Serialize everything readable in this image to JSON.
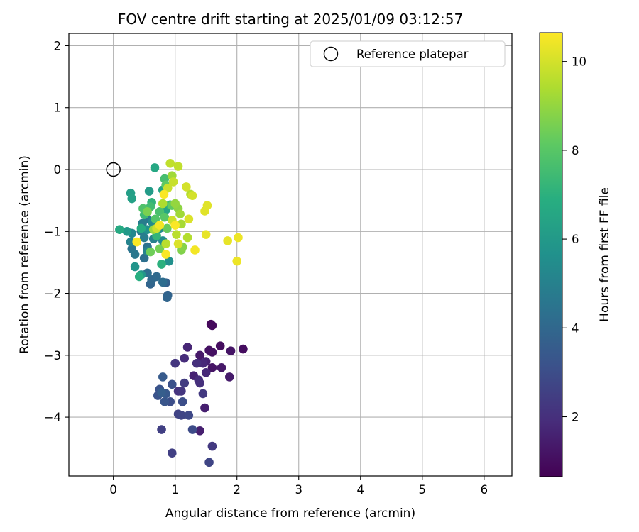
{
  "chart_data": {
    "type": "scatter",
    "title": "FOV centre drift starting at 2025/01/09 03:12:57",
    "xlabel": "Angular distance from reference (arcmin)",
    "ylabel": "Rotation from reference (arcmin)",
    "xlim": [
      -0.72,
      6.45
    ],
    "ylim": [
      -4.95,
      2.2
    ],
    "x_ticks": [
      0,
      1,
      2,
      3,
      4,
      5,
      6
    ],
    "y_ticks": [
      -4,
      -3,
      -2,
      -1,
      0,
      1,
      2
    ],
    "grid": true,
    "legend": {
      "placement": "top-right",
      "entries": [
        "Reference platepar"
      ]
    },
    "reference_point": {
      "x": 0,
      "y": 0
    },
    "colorbar": {
      "label": "Hours from first FF file",
      "colormap": "viridis",
      "range": [
        0.65,
        10.65
      ],
      "ticks": [
        2,
        4,
        6,
        8,
        10
      ]
    },
    "points": [
      {
        "x": 1.58,
        "y": -2.5,
        "c": 0.8
      },
      {
        "x": 1.6,
        "y": -2.52,
        "c": 0.9
      },
      {
        "x": 1.73,
        "y": -2.85,
        "c": 1.0
      },
      {
        "x": 2.1,
        "y": -2.9,
        "c": 1.0
      },
      {
        "x": 1.55,
        "y": -2.92,
        "c": 1.1
      },
      {
        "x": 1.6,
        "y": -2.95,
        "c": 1.1
      },
      {
        "x": 1.9,
        "y": -2.93,
        "c": 1.2
      },
      {
        "x": 1.6,
        "y": -3.2,
        "c": 1.2
      },
      {
        "x": 1.75,
        "y": -3.2,
        "c": 1.3
      },
      {
        "x": 1.4,
        "y": -3.0,
        "c": 1.3
      },
      {
        "x": 1.88,
        "y": -3.35,
        "c": 1.4
      },
      {
        "x": 1.4,
        "y": -4.22,
        "c": 1.5
      },
      {
        "x": 1.48,
        "y": -3.85,
        "c": 1.5
      },
      {
        "x": 1.5,
        "y": -3.1,
        "c": 1.6
      },
      {
        "x": 1.3,
        "y": -3.33,
        "c": 1.6
      },
      {
        "x": 1.2,
        "y": -2.87,
        "c": 1.7
      },
      {
        "x": 1.45,
        "y": -3.13,
        "c": 1.8
      },
      {
        "x": 1.5,
        "y": -3.28,
        "c": 1.8
      },
      {
        "x": 1.38,
        "y": -3.4,
        "c": 1.9
      },
      {
        "x": 1.15,
        "y": -3.05,
        "c": 1.9
      },
      {
        "x": 1.35,
        "y": -3.13,
        "c": 2.0
      },
      {
        "x": 1.4,
        "y": -3.45,
        "c": 2.0
      },
      {
        "x": 1.05,
        "y": -3.58,
        "c": 2.1
      },
      {
        "x": 1.1,
        "y": -3.58,
        "c": 2.2
      },
      {
        "x": 1.0,
        "y": -3.13,
        "c": 2.2
      },
      {
        "x": 1.6,
        "y": -4.47,
        "c": 2.3
      },
      {
        "x": 1.45,
        "y": -3.62,
        "c": 2.3
      },
      {
        "x": 1.15,
        "y": -3.45,
        "c": 2.4
      },
      {
        "x": 0.95,
        "y": -4.58,
        "c": 2.5
      },
      {
        "x": 0.78,
        "y": -4.2,
        "c": 2.5
      },
      {
        "x": 1.05,
        "y": -3.95,
        "c": 2.6
      },
      {
        "x": 1.1,
        "y": -3.97,
        "c": 2.7
      },
      {
        "x": 1.55,
        "y": -4.73,
        "c": 2.7
      },
      {
        "x": 1.22,
        "y": -3.97,
        "c": 2.8
      },
      {
        "x": 1.28,
        "y": -4.2,
        "c": 2.9
      },
      {
        "x": 0.92,
        "y": -3.75,
        "c": 3.0
      },
      {
        "x": 1.12,
        "y": -3.75,
        "c": 3.0
      },
      {
        "x": 0.95,
        "y": -3.47,
        "c": 3.1
      },
      {
        "x": 0.75,
        "y": -3.55,
        "c": 3.2
      },
      {
        "x": 0.72,
        "y": -3.65,
        "c": 3.2
      },
      {
        "x": 0.83,
        "y": -3.75,
        "c": 3.3
      },
      {
        "x": 0.85,
        "y": -3.62,
        "c": 3.4
      },
      {
        "x": 0.8,
        "y": -3.35,
        "c": 3.5
      },
      {
        "x": 0.78,
        "y": -3.6,
        "c": 3.6
      },
      {
        "x": 0.85,
        "y": -1.83,
        "c": 3.7
      },
      {
        "x": 0.88,
        "y": -2.03,
        "c": 3.8
      },
      {
        "x": 0.87,
        "y": -2.07,
        "c": 3.9
      },
      {
        "x": 0.6,
        "y": -1.85,
        "c": 3.9
      },
      {
        "x": 0.62,
        "y": -1.78,
        "c": 4.0
      },
      {
        "x": 0.7,
        "y": -1.73,
        "c": 4.1
      },
      {
        "x": 0.8,
        "y": -1.82,
        "c": 4.2
      },
      {
        "x": 0.55,
        "y": -1.67,
        "c": 4.3
      },
      {
        "x": 0.5,
        "y": -1.43,
        "c": 4.3
      },
      {
        "x": 0.55,
        "y": -1.25,
        "c": 4.4
      },
      {
        "x": 0.3,
        "y": -1.28,
        "c": 4.5
      },
      {
        "x": 0.35,
        "y": -1.37,
        "c": 4.6
      },
      {
        "x": 0.45,
        "y": -1.0,
        "c": 4.7
      },
      {
        "x": 0.55,
        "y": -0.8,
        "c": 4.7
      },
      {
        "x": 0.47,
        "y": -0.87,
        "c": 4.8
      },
      {
        "x": 0.5,
        "y": -1.1,
        "c": 4.9
      },
      {
        "x": 0.65,
        "y": -1.12,
        "c": 5.0
      },
      {
        "x": 0.28,
        "y": -1.17,
        "c": 5.1
      },
      {
        "x": 0.55,
        "y": -1.32,
        "c": 5.1
      },
      {
        "x": 0.3,
        "y": -1.03,
        "c": 5.2
      },
      {
        "x": 0.7,
        "y": -1.0,
        "c": 5.3
      },
      {
        "x": 0.63,
        "y": -0.85,
        "c": 5.4
      },
      {
        "x": 0.8,
        "y": -1.15,
        "c": 5.5
      },
      {
        "x": 0.75,
        "y": -0.95,
        "c": 5.5
      },
      {
        "x": 0.9,
        "y": -1.48,
        "c": 5.6
      },
      {
        "x": 0.55,
        "y": -0.97,
        "c": 5.7
      },
      {
        "x": 0.35,
        "y": -1.57,
        "c": 5.8
      },
      {
        "x": 0.45,
        "y": -1.7,
        "c": 5.9
      },
      {
        "x": 0.22,
        "y": -1.0,
        "c": 6.0
      },
      {
        "x": 0.58,
        "y": -0.35,
        "c": 6.1
      },
      {
        "x": 0.28,
        "y": -0.38,
        "c": 6.2
      },
      {
        "x": 0.3,
        "y": -0.47,
        "c": 6.3
      },
      {
        "x": 0.8,
        "y": -0.33,
        "c": 6.4
      },
      {
        "x": 0.85,
        "y": -0.65,
        "c": 6.5
      },
      {
        "x": 0.67,
        "y": 0.03,
        "c": 6.6
      },
      {
        "x": 0.1,
        "y": -0.97,
        "c": 6.7
      },
      {
        "x": 0.45,
        "y": -0.95,
        "c": 6.8
      },
      {
        "x": 0.42,
        "y": -1.73,
        "c": 6.9
      },
      {
        "x": 0.78,
        "y": -1.53,
        "c": 7.0
      },
      {
        "x": 0.62,
        "y": -0.53,
        "c": 7.1
      },
      {
        "x": 0.7,
        "y": -1.07,
        "c": 7.2
      },
      {
        "x": 0.92,
        "y": -0.57,
        "c": 7.3
      },
      {
        "x": 0.5,
        "y": -0.73,
        "c": 7.4
      },
      {
        "x": 0.6,
        "y": -0.6,
        "c": 7.5
      },
      {
        "x": 0.83,
        "y": -0.15,
        "c": 7.6
      },
      {
        "x": 0.75,
        "y": -0.68,
        "c": 7.7
      },
      {
        "x": 0.48,
        "y": -0.63,
        "c": 7.8
      },
      {
        "x": 0.68,
        "y": -0.8,
        "c": 7.9
      },
      {
        "x": 0.83,
        "y": -0.77,
        "c": 8.0
      },
      {
        "x": 0.85,
        "y": -0.25,
        "c": 8.1
      },
      {
        "x": 0.95,
        "y": -0.58,
        "c": 8.2
      },
      {
        "x": 0.87,
        "y": -0.95,
        "c": 8.3
      },
      {
        "x": 0.6,
        "y": -1.33,
        "c": 8.4
      },
      {
        "x": 0.75,
        "y": -1.28,
        "c": 8.5
      },
      {
        "x": 0.55,
        "y": -0.68,
        "c": 8.6
      },
      {
        "x": 1.1,
        "y": -1.3,
        "c": 8.7
      },
      {
        "x": 1.12,
        "y": -1.25,
        "c": 8.8
      },
      {
        "x": 1.05,
        "y": -0.63,
        "c": 8.9
      },
      {
        "x": 1.0,
        "y": -0.55,
        "c": 9.0
      },
      {
        "x": 0.65,
        "y": -0.97,
        "c": 9.1
      },
      {
        "x": 0.95,
        "y": -0.1,
        "c": 9.2
      },
      {
        "x": 1.08,
        "y": -0.72,
        "c": 9.2
      },
      {
        "x": 1.1,
        "y": -0.88,
        "c": 9.3
      },
      {
        "x": 0.8,
        "y": -0.55,
        "c": 9.4
      },
      {
        "x": 1.2,
        "y": -1.1,
        "c": 9.5
      },
      {
        "x": 1.25,
        "y": -0.4,
        "c": 9.5
      },
      {
        "x": 1.02,
        "y": -1.05,
        "c": 9.6
      },
      {
        "x": 0.85,
        "y": -1.2,
        "c": 9.6
      },
      {
        "x": 0.92,
        "y": 0.1,
        "c": 9.7
      },
      {
        "x": 1.05,
        "y": 0.05,
        "c": 9.7
      },
      {
        "x": 0.97,
        "y": -0.2,
        "c": 9.8
      },
      {
        "x": 0.88,
        "y": -0.3,
        "c": 9.8
      },
      {
        "x": 0.7,
        "y": -0.95,
        "c": 9.9
      },
      {
        "x": 0.95,
        "y": -0.82,
        "c": 9.9
      },
      {
        "x": 1.18,
        "y": -0.28,
        "c": 10.0
      },
      {
        "x": 1.28,
        "y": -0.42,
        "c": 10.0
      },
      {
        "x": 1.22,
        "y": -0.8,
        "c": 10.1
      },
      {
        "x": 1.05,
        "y": -1.2,
        "c": 10.1
      },
      {
        "x": 1.48,
        "y": -0.67,
        "c": 10.2
      },
      {
        "x": 1.52,
        "y": -0.58,
        "c": 10.2
      },
      {
        "x": 1.5,
        "y": -1.05,
        "c": 10.3
      },
      {
        "x": 1.85,
        "y": -1.15,
        "c": 10.3
      },
      {
        "x": 2.02,
        "y": -1.1,
        "c": 10.4
      },
      {
        "x": 2.0,
        "y": -1.48,
        "c": 10.4
      },
      {
        "x": 1.32,
        "y": -1.3,
        "c": 10.5
      },
      {
        "x": 0.75,
        "y": -0.9,
        "c": 10.5
      },
      {
        "x": 0.38,
        "y": -1.17,
        "c": 10.6
      },
      {
        "x": 0.85,
        "y": -1.37,
        "c": 10.6
      },
      {
        "x": 1.0,
        "y": -0.9,
        "c": 10.6
      },
      {
        "x": 0.82,
        "y": -0.4,
        "c": 10.6
      }
    ]
  }
}
